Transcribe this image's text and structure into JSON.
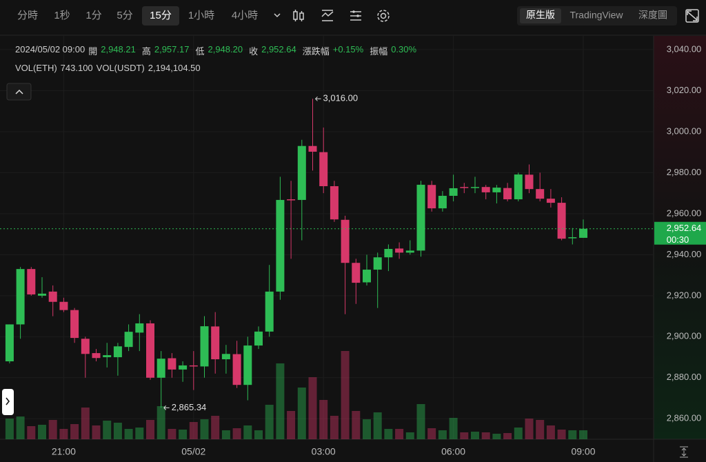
{
  "toolbar": {
    "intervals": [
      "分時",
      "1秒",
      "1分",
      "5分",
      "15分",
      "1小時",
      "4小時"
    ],
    "active_interval": 4,
    "tabs": [
      "原生版",
      "TradingView",
      "深度圖"
    ],
    "active_tab": 0
  },
  "legend": {
    "time": "2024/05/02 09:00",
    "items": [
      [
        "開",
        "2,948.21"
      ],
      [
        "高",
        "2,957.17"
      ],
      [
        "低",
        "2,948.20"
      ],
      [
        "收",
        "2,952.64"
      ],
      [
        "漲跌幅",
        "+0.15%"
      ],
      [
        "振幅",
        "0.30%"
      ]
    ],
    "volume_items": [
      [
        "VOL(ETH)",
        "743.100"
      ],
      [
        "VOL(USDT)",
        "2,194,104.50"
      ]
    ]
  },
  "chart_data": {
    "type": "candlestick",
    "up_color": "#2ebd55",
    "down_color": "#d7386a",
    "categories": [
      null,
      null,
      null,
      null,
      null,
      "21:00",
      null,
      null,
      null,
      null,
      null,
      null,
      null,
      null,
      null,
      null,
      null,
      "05/02",
      null,
      null,
      null,
      null,
      null,
      null,
      null,
      null,
      null,
      null,
      null,
      "03:00",
      null,
      null,
      null,
      null,
      null,
      null,
      null,
      null,
      null,
      null,
      null,
      "06:00",
      null,
      null,
      null,
      null,
      null,
      null,
      null,
      null,
      null,
      null,
      null,
      "09:00"
    ],
    "series": [
      {
        "name": "open",
        "values": [
          2888,
          2906,
          2933,
          2920,
          2922,
          2917,
          2913,
          2899,
          2892,
          2890,
          2890,
          2895,
          2902,
          2906.5,
          2880,
          2889.5,
          2884,
          2886,
          2885.5,
          2905,
          2889,
          2891.5,
          2876.5,
          2895.7,
          2902.5,
          2922,
          2967,
          2966.7,
          2993,
          2990,
          2973.4,
          2957,
          2936,
          2926.5,
          2932.7,
          2938.7,
          2943,
          2941,
          2942,
          2974,
          2962.6,
          2968.7,
          2973,
          2972.5,
          2973,
          2970.4,
          2972.5,
          2967,
          2979,
          2972,
          2967.3,
          2965.3,
          2948,
          2948.21
        ]
      },
      {
        "name": "high",
        "values": [
          2906,
          2934,
          2934,
          2929,
          2925,
          2919,
          2914,
          2900,
          2894,
          2897,
          2897,
          2906,
          2911,
          2908,
          2893,
          2892,
          2888,
          2893,
          2910,
          2912,
          2896,
          2898,
          2900,
          2905,
          2935,
          2978,
          2976,
          2996,
          3016,
          3002,
          2976,
          2959,
          2938,
          2940,
          2941,
          2945,
          2946,
          2947,
          2976,
          2976,
          2971,
          2979,
          2975,
          2978,
          2974,
          2974,
          2975,
          2980,
          2984,
          2980,
          2972,
          2968,
          2953,
          2957.17
        ]
      },
      {
        "name": "low",
        "values": [
          2887,
          2899,
          2920,
          2919,
          2910,
          2912,
          2897,
          2880,
          2888,
          2885,
          2881,
          2893,
          2893,
          2879,
          2865.34,
          2880,
          2878,
          2874,
          2880,
          2882,
          2882,
          2875,
          2869,
          2894,
          2900,
          2918,
          2938,
          2947,
          2981,
          2970,
          2956,
          2911,
          2916,
          2925,
          2914,
          2932,
          2938,
          2940,
          2939,
          2961,
          2961,
          2966,
          2970,
          2970,
          2967,
          2965,
          2966,
          2966,
          2970,
          2966,
          2963,
          2947,
          2945,
          2948.2
        ]
      },
      {
        "name": "close",
        "values": [
          2906,
          2933,
          2920.6,
          2921,
          2917,
          2913,
          2899.4,
          2891.6,
          2889.6,
          2891,
          2895.3,
          2902.4,
          2906.5,
          2880,
          2889.3,
          2884,
          2886,
          2885.5,
          2905.1,
          2889,
          2891.6,
          2876.5,
          2895.7,
          2902.5,
          2922,
          2966.7,
          2966.5,
          2993,
          2990.2,
          2973.4,
          2957.2,
          2936,
          2926.3,
          2932.7,
          2938.7,
          2942.8,
          2941,
          2942,
          2974.1,
          2962.6,
          2968.7,
          2972.4,
          2972.5,
          2973,
          2970.4,
          2972.7,
          2967,
          2979.1,
          2972,
          2967.3,
          2965.3,
          2947.8,
          2948.5,
          2952.64
        ]
      },
      {
        "name": "volume",
        "values": [
          1715,
          1886,
          1086,
          1200,
          1600,
          857,
          1257,
          2629,
          1143,
          1543,
          1372,
          857,
          972,
          1600,
          2743,
          857,
          800,
          1429,
          1657,
          1943,
          743,
          914,
          1143,
          743,
          2857,
          6286,
          2343,
          4286,
          5143,
          3258,
          1943,
          7315,
          2343,
          1657,
          2229,
          857,
          857,
          572,
          2915,
          914,
          743,
          1772,
          572,
          629,
          572,
          457,
          514,
          972,
          1715,
          1600,
          1143,
          800,
          743,
          743.1
        ]
      }
    ],
    "ylim": [
      2850,
      3046.7
    ],
    "yticks": [
      {
        "value": 2860,
        "label": "2,860.00"
      },
      {
        "value": 2880,
        "label": "2,880.00"
      },
      {
        "value": 2900,
        "label": "2,900.00"
      },
      {
        "value": 2920,
        "label": "2,920.00"
      },
      {
        "value": 2940,
        "label": "2,940.00"
      },
      {
        "value": 2960,
        "label": "2,960.00"
      },
      {
        "value": 2980,
        "label": "2,980.00"
      },
      {
        "value": 3000,
        "label": "3,000.00"
      },
      {
        "value": 3020,
        "label": "3,020.00"
      },
      {
        "value": 3040,
        "label": "3,040.00"
      }
    ],
    "grid": true,
    "annotations": [
      {
        "value": 3016,
        "label": "3,016.00"
      },
      {
        "value": 2865.34,
        "label": "2,865.34"
      }
    ],
    "last_price": {
      "value": 2952.64,
      "label": "2,952.64",
      "countdown": "00:30"
    }
  }
}
